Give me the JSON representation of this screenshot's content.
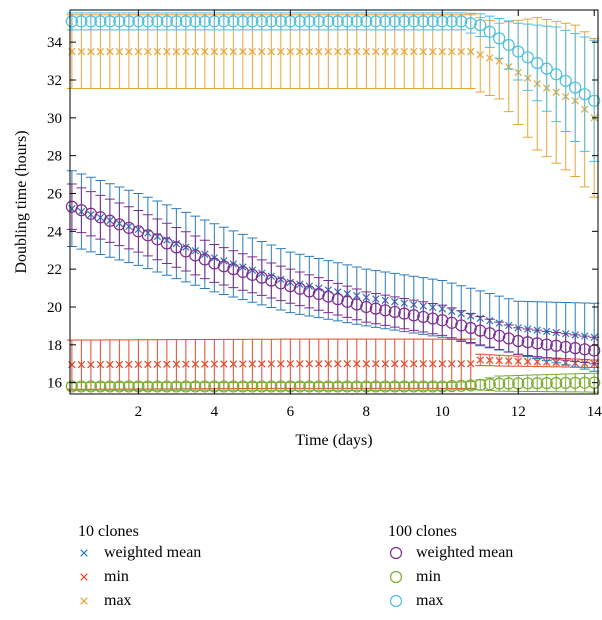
{
  "chart_data": {
    "type": "scatter",
    "xlabel": "Time (days)",
    "ylabel": "Doubling time (hours)",
    "xlim": [
      0.2,
      14.1
    ],
    "ylim": [
      15.4,
      35.7
    ],
    "xticks": [
      2,
      4,
      6,
      8,
      10,
      12,
      14
    ],
    "yticks": [
      16,
      18,
      20,
      22,
      24,
      26,
      28,
      30,
      32,
      34
    ],
    "grid": false,
    "x": {
      "start": 0.25,
      "step": 0.25,
      "count": 56
    },
    "legend_groups": [
      {
        "title": "10 clones",
        "marker": "x",
        "entries": [
          "weighted mean",
          "min",
          "max"
        ]
      },
      {
        "title": "100 clones",
        "marker": "o",
        "entries": [
          "weighted mean",
          "min",
          "max"
        ]
      }
    ],
    "series": [
      {
        "group": "10 clones",
        "name": "weighted mean",
        "marker": "x",
        "color": "#2b7bba",
        "knots": [
          [
            0.25,
            25.2,
            2.0
          ],
          [
            2.0,
            24.1,
            1.9
          ],
          [
            4.0,
            22.6,
            1.8
          ],
          [
            6.0,
            21.3,
            1.6
          ],
          [
            8.0,
            20.5,
            1.5
          ],
          [
            10.0,
            19.9,
            1.5
          ],
          [
            12.0,
            18.9,
            1.4
          ],
          [
            14.0,
            18.4,
            1.8
          ]
        ]
      },
      {
        "group": "10 clones",
        "name": "min",
        "marker": "x",
        "color": "#e04b2a",
        "knots": [
          [
            0.25,
            16.95,
            1.3
          ],
          [
            6.0,
            17.0,
            1.3
          ],
          [
            10.0,
            17.0,
            1.3
          ],
          [
            10.75,
            17.0,
            1.3
          ],
          [
            11.0,
            17.2,
            0.3
          ],
          [
            14.0,
            17.0,
            0.2
          ]
        ]
      },
      {
        "group": "10 clones",
        "name": "max",
        "marker": "x",
        "color": "#e8a53a",
        "knots": [
          [
            0.25,
            33.5,
            1.95
          ],
          [
            10.75,
            33.5,
            1.95
          ],
          [
            11.5,
            33.0,
            2.0
          ],
          [
            12.5,
            31.8,
            3.5
          ],
          [
            13.5,
            30.9,
            4.0
          ],
          [
            14.0,
            30.0,
            4.2
          ]
        ]
      },
      {
        "group": "100 clones",
        "name": "weighted mean",
        "marker": "o",
        "color": "#7b2d8e",
        "knots": [
          [
            0.25,
            25.3,
            1.2
          ],
          [
            2.0,
            24.0,
            1.1
          ],
          [
            4.0,
            22.3,
            1.0
          ],
          [
            6.0,
            21.1,
            0.9
          ],
          [
            8.0,
            20.0,
            0.8
          ],
          [
            10.0,
            19.3,
            0.8
          ],
          [
            12.0,
            18.2,
            0.7
          ],
          [
            14.0,
            17.7,
            0.7
          ]
        ]
      },
      {
        "group": "100 clones",
        "name": "min",
        "marker": "o",
        "color": "#77ac30",
        "knots": [
          [
            0.25,
            15.8,
            0.2
          ],
          [
            10.0,
            15.8,
            0.2
          ],
          [
            10.75,
            15.85,
            0.2
          ],
          [
            11.5,
            15.95,
            0.4
          ],
          [
            14.0,
            16.0,
            0.5
          ]
        ]
      },
      {
        "group": "100 clones",
        "name": "max",
        "marker": "o",
        "color": "#4dbfe0",
        "knots": [
          [
            0.25,
            35.1,
            0.45
          ],
          [
            10.5,
            35.1,
            0.45
          ],
          [
            11.0,
            34.9,
            0.6
          ],
          [
            12.0,
            33.5,
            1.5
          ],
          [
            13.0,
            32.3,
            2.5
          ],
          [
            14.0,
            30.9,
            3.2
          ]
        ]
      }
    ]
  }
}
